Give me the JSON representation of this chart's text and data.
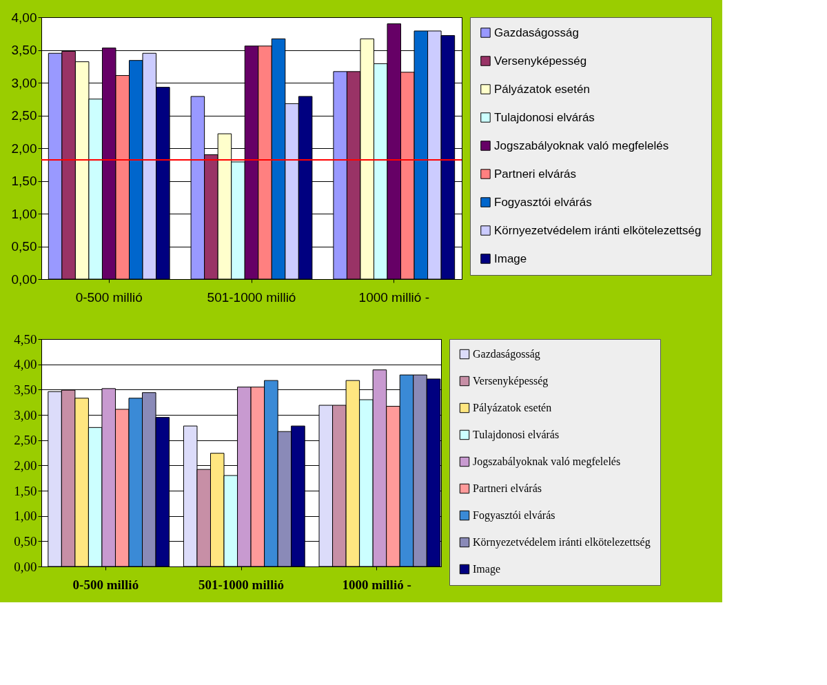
{
  "chart_data": [
    {
      "type": "bar",
      "categories": [
        "0-500 millió",
        "501-1000 millió",
        "1000 millió -"
      ],
      "ylim": [
        0,
        4
      ],
      "yticks": [
        {
          "value": 0,
          "label": "0,00"
        },
        {
          "value": 0.5,
          "label": "0,50"
        },
        {
          "value": 1,
          "label": "1,00"
        },
        {
          "value": 1.5,
          "label": "1,50"
        },
        {
          "value": 2,
          "label": "2,00"
        },
        {
          "value": 2.5,
          "label": "2,50"
        },
        {
          "value": 3,
          "label": "3,00"
        },
        {
          "value": 3.5,
          "label": "3,50"
        },
        {
          "value": 4,
          "label": "4,00"
        }
      ],
      "grid": "y",
      "legend": "right",
      "ref_lines": [
        {
          "axis": "y",
          "value": 1.82,
          "color": "#ff0000"
        }
      ],
      "series": [
        {
          "name": "Gazdaságosság",
          "color": "#9999ff",
          "values": [
            3.45,
            2.79,
            3.17
          ]
        },
        {
          "name": "Versenyképesség",
          "color": "#993366",
          "values": [
            3.48,
            1.9,
            3.17
          ]
        },
        {
          "name": "Pályázatok esetén",
          "color": "#ffffcc",
          "values": [
            3.32,
            2.22,
            3.67
          ]
        },
        {
          "name": "Tulajdonosi elvárás",
          "color": "#ccffff",
          "values": [
            2.75,
            1.79,
            3.29
          ]
        },
        {
          "name": "Jogszabályoknak való megfelelés",
          "color": "#660066",
          "values": [
            3.53,
            3.56,
            3.9
          ]
        },
        {
          "name": "Partneri elvárás",
          "color": "#ff8080",
          "values": [
            3.11,
            3.56,
            3.16
          ]
        },
        {
          "name": "Fogyasztói elvárás",
          "color": "#0066cc",
          "values": [
            3.34,
            3.67,
            3.79
          ]
        },
        {
          "name": "Környezetvédelem iránti elkötelezettség",
          "color": "#ccccff",
          "values": [
            3.45,
            2.68,
            3.79
          ]
        },
        {
          "name": "Image",
          "color": "#000080",
          "values": [
            2.93,
            2.79,
            3.72
          ]
        }
      ]
    },
    {
      "type": "bar",
      "categories": [
        "0-500 millió",
        "501-1000 millió",
        "1000 millió -"
      ],
      "ylim": [
        0,
        4.5
      ],
      "yticks": [
        {
          "value": 0,
          "label": "0,00"
        },
        {
          "value": 0.5,
          "label": "0,50"
        },
        {
          "value": 1,
          "label": "1,00"
        },
        {
          "value": 1.5,
          "label": "1,50"
        },
        {
          "value": 2,
          "label": "2,00"
        },
        {
          "value": 2.5,
          "label": "2,50"
        },
        {
          "value": 3,
          "label": "3,00"
        },
        {
          "value": 3.5,
          "label": "3,50"
        },
        {
          "value": 4,
          "label": "4,00"
        },
        {
          "value": 4.5,
          "label": "4,50"
        }
      ],
      "grid": "y",
      "legend": "right",
      "series": [
        {
          "name": "Gazdaságosság",
          "color": "#dcdcfa",
          "values": [
            3.46,
            2.78,
            3.19
          ]
        },
        {
          "name": "Versenyképesség",
          "color": "#c78fa6",
          "values": [
            3.49,
            1.92,
            3.19
          ]
        },
        {
          "name": "Pályázatok esetén",
          "color": "#ffe680",
          "values": [
            3.33,
            2.24,
            3.68
          ]
        },
        {
          "name": "Tulajdonosi elvárás",
          "color": "#ccffff",
          "values": [
            2.75,
            1.8,
            3.3
          ]
        },
        {
          "name": "Jogszabályoknak való megfelelés",
          "color": "#c89ad0",
          "values": [
            3.52,
            3.55,
            3.89
          ]
        },
        {
          "name": "Partneri elvárás",
          "color": "#ff9a9a",
          "values": [
            3.11,
            3.55,
            3.17
          ]
        },
        {
          "name": "Fogyasztói elvárás",
          "color": "#3a8ad6",
          "values": [
            3.33,
            3.68,
            3.79
          ]
        },
        {
          "name": "Környezetvédelem iránti elkötelezettség",
          "color": "#8a8ab8",
          "values": [
            3.44,
            2.67,
            3.79
          ]
        },
        {
          "name": "Image",
          "color": "#000080",
          "values": [
            2.95,
            2.78,
            3.71
          ]
        }
      ]
    }
  ]
}
